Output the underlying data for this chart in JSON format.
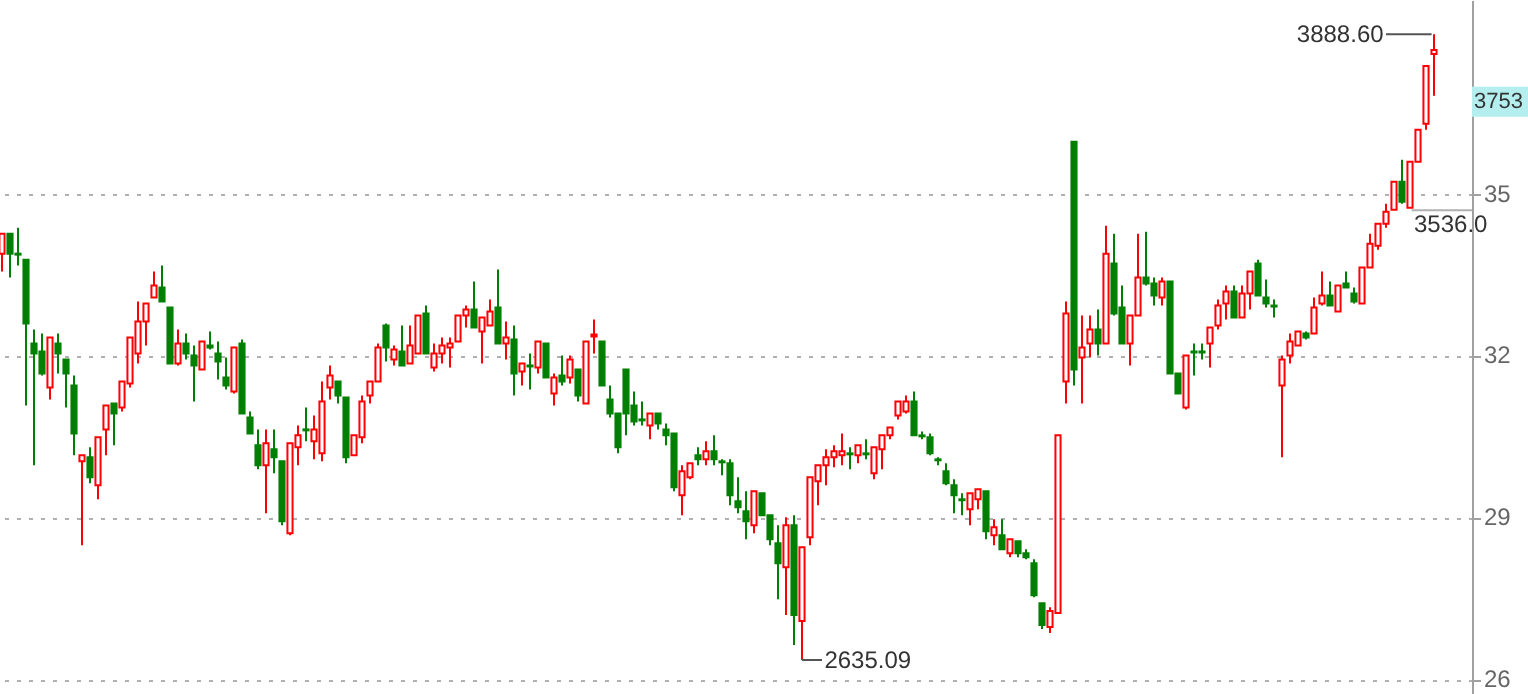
{
  "chart_data": {
    "type": "candlestick",
    "categories": [
      null,
      null,
      null,
      null,
      null,
      null,
      null,
      null,
      null,
      null,
      null,
      null,
      null,
      null,
      null,
      null,
      null,
      null,
      null,
      null,
      null,
      null,
      null,
      null,
      null,
      null,
      null,
      null,
      null,
      null,
      null,
      null,
      null,
      null,
      null,
      null,
      null,
      null,
      null,
      null,
      null,
      null,
      null,
      null,
      null,
      null,
      null,
      null,
      null,
      null,
      null,
      null,
      null,
      null,
      null,
      null,
      null,
      null,
      null,
      null,
      null,
      null,
      null,
      null,
      null,
      null,
      null,
      null,
      null,
      null,
      null,
      null,
      null,
      null,
      null,
      null,
      null,
      null,
      null,
      null,
      null,
      null,
      null,
      null,
      null,
      null,
      null,
      null,
      null,
      null,
      null,
      null,
      null,
      null,
      null,
      null,
      null,
      null,
      null,
      null,
      null,
      null,
      null,
      null,
      null,
      null,
      null,
      null,
      null,
      null,
      null,
      null,
      null,
      null,
      null,
      null,
      null,
      null,
      null,
      null,
      null,
      null,
      null,
      null,
      null,
      null,
      null,
      null,
      null,
      null,
      null,
      null,
      null,
      null,
      null,
      null,
      null,
      null,
      null,
      null,
      null,
      null,
      null,
      null,
      null,
      null,
      null,
      null,
      null,
      null,
      null,
      null,
      null,
      null,
      null,
      null,
      null,
      null,
      null,
      null,
      null,
      null,
      null,
      null,
      null,
      null,
      null,
      null,
      null,
      null,
      null,
      null,
      null,
      null,
      null,
      null,
      null,
      null,
      null,
      null
    ],
    "ohlc": [
      [
        3449,
        3489,
        3413,
        3489
      ],
      [
        3489,
        3489,
        3401,
        3449
      ],
      [
        3449,
        3501,
        3425,
        3447
      ],
      [
        3437,
        3437,
        3145,
        3309
      ],
      [
        3269,
        3297,
        3025,
        3249
      ],
      [
        3253,
        3289,
        3205,
        3209
      ],
      [
        3181,
        3281,
        3157,
        3281
      ],
      [
        3269,
        3289,
        3209,
        3249
      ],
      [
        3237,
        3237,
        3141,
        3209
      ],
      [
        3185,
        3205,
        3045,
        3089
      ],
      [
        3033,
        3045,
        2865,
        3045
      ],
      [
        3041,
        3061,
        2989,
        3001
      ],
      [
        2985,
        3081,
        2957,
        3081
      ],
      [
        3097,
        3145,
        3045,
        3145
      ],
      [
        3149,
        3149,
        3065,
        3129
      ],
      [
        3141,
        3193,
        3133,
        3193
      ],
      [
        3189,
        3281,
        3181,
        3281
      ],
      [
        3249,
        3353,
        3229,
        3313
      ],
      [
        3313,
        3349,
        3265,
        3349
      ],
      [
        3361,
        3413,
        3361,
        3385
      ],
      [
        3381,
        3425,
        3353,
        3353
      ],
      [
        3341,
        3341,
        3229,
        3229
      ],
      [
        3229,
        3297,
        3225,
        3269
      ],
      [
        3269,
        3289,
        3237,
        3249
      ],
      [
        3245,
        3265,
        3153,
        3225
      ],
      [
        3217,
        3273,
        3217,
        3273
      ],
      [
        3265,
        3293,
        3257,
        3261
      ],
      [
        3249,
        3273,
        3197,
        3233
      ],
      [
        3201,
        3241,
        3177,
        3185
      ],
      [
        3173,
        3261,
        3169,
        3261
      ],
      [
        3269,
        3277,
        3129,
        3129
      ],
      [
        3121,
        3133,
        3089,
        3089
      ],
      [
        3065,
        3097,
        3017,
        3025
      ],
      [
        3025,
        3097,
        2929,
        3069
      ],
      [
        3057,
        3097,
        3009,
        3041
      ],
      [
        3033,
        3033,
        2905,
        2913
      ],
      [
        2889,
        3069,
        2885,
        3069
      ],
      [
        3061,
        3105,
        3025,
        3085
      ],
      [
        3097,
        3141,
        3073,
        3095
      ],
      [
        3073,
        3125,
        3037,
        3097
      ],
      [
        3049,
        3193,
        3033,
        3153
      ],
      [
        3181,
        3225,
        3157,
        3205
      ],
      [
        3193,
        3193,
        3149,
        3165
      ],
      [
        3161,
        3161,
        3029,
        3041
      ],
      [
        3045,
        3085,
        3045,
        3085
      ],
      [
        3081,
        3165,
        3069,
        3153
      ],
      [
        3165,
        3193,
        3149,
        3193
      ],
      [
        3193,
        3269,
        3193,
        3261
      ],
      [
        3305,
        3309,
        3233,
        3261
      ],
      [
        3237,
        3265,
        3225,
        3257
      ],
      [
        3253,
        3305,
        3225,
        3225
      ],
      [
        3229,
        3305,
        3229,
        3265
      ],
      [
        3249,
        3325,
        3249,
        3325
      ],
      [
        3329,
        3345,
        3249,
        3249
      ],
      [
        3221,
        3269,
        3213,
        3249
      ],
      [
        3249,
        3281,
        3229,
        3265
      ],
      [
        3261,
        3281,
        3221,
        3269
      ],
      [
        3273,
        3325,
        3273,
        3325
      ],
      [
        3325,
        3345,
        3301,
        3337
      ],
      [
        3337,
        3393,
        3301,
        3301
      ],
      [
        3293,
        3321,
        3229,
        3321
      ],
      [
        3305,
        3357,
        3305,
        3333
      ],
      [
        3341,
        3417,
        3269,
        3269
      ],
      [
        3269,
        3313,
        3237,
        3281
      ],
      [
        3277,
        3305,
        3165,
        3209
      ],
      [
        3213,
        3229,
        3185,
        3229
      ],
      [
        3225,
        3249,
        3177,
        3223
      ],
      [
        3221,
        3273,
        3209,
        3273
      ],
      [
        3269,
        3269,
        3201,
        3201
      ],
      [
        3169,
        3209,
        3145,
        3201
      ],
      [
        3205,
        3245,
        3185,
        3193
      ],
      [
        3201,
        3245,
        3189,
        3237
      ],
      [
        3217,
        3217,
        3153,
        3165
      ],
      [
        3149,
        3273,
        3149,
        3273
      ],
      [
        3283,
        3317,
        3249,
        3287
      ],
      [
        3273,
        3273,
        3185,
        3185
      ],
      [
        3157,
        3185,
        3121,
        3129
      ],
      [
        3129,
        3129,
        3049,
        3061
      ],
      [
        3217,
        3217,
        3085,
        3129
      ],
      [
        3145,
        3173,
        3105,
        3113
      ],
      [
        3117,
        3153,
        3105,
        3115
      ],
      [
        3105,
        3129,
        3077,
        3129
      ],
      [
        3129,
        3129,
        3097,
        3109
      ],
      [
        3097,
        3109,
        3065,
        3085
      ],
      [
        3089,
        3089,
        2973,
        2981
      ],
      [
        2965,
        3025,
        2925,
        3013
      ],
      [
        3001,
        3029,
        2997,
        3029
      ],
      [
        3045,
        3061,
        3025,
        3037
      ],
      [
        3037,
        3073,
        3025,
        3053
      ],
      [
        3053,
        3085,
        3025,
        3037
      ],
      [
        3033,
        3037,
        3005,
        3031
      ],
      [
        3029,
        3037,
        2945,
        2965
      ],
      [
        2953,
        3001,
        2929,
        2941
      ],
      [
        2933,
        2973,
        2877,
        2913
      ],
      [
        2905,
        2973,
        2889,
        2973
      ],
      [
        2969,
        2969,
        2925,
        2925
      ],
      [
        2925,
        2925,
        2865,
        2877
      ],
      [
        2869,
        2905,
        2757,
        2829
      ],
      [
        2821,
        2921,
        2725,
        2905
      ],
      [
        2905,
        2925,
        2665,
        2725
      ],
      [
        2713,
        2861,
        2635.09,
        2861
      ],
      [
        2881,
        3001,
        2865,
        3001
      ],
      [
        2993,
        3025,
        2945,
        3025
      ],
      [
        3025,
        3057,
        2985,
        3041
      ],
      [
        3041,
        3065,
        3021,
        3053
      ],
      [
        3045,
        3089,
        3025,
        3053
      ],
      [
        3049,
        3061,
        3017,
        3047
      ],
      [
        3045,
        3065,
        3029,
        3065
      ],
      [
        3049,
        3077,
        3037,
        3047
      ],
      [
        3009,
        3061,
        2997,
        3061
      ],
      [
        3057,
        3085,
        3017,
        3085
      ],
      [
        3085,
        3101,
        3077,
        3101
      ],
      [
        3125,
        3153,
        3117,
        3153
      ],
      [
        3133,
        3165,
        3129,
        3153
      ],
      [
        3153,
        3173,
        3085,
        3085
      ],
      [
        3085,
        3093,
        3077,
        3083
      ],
      [
        3081,
        3089,
        3045,
        3049
      ],
      [
        3037,
        3041,
        3025,
        3035
      ],
      [
        3013,
        3029,
        2985,
        2989
      ],
      [
        2985,
        2997,
        2929,
        2965
      ],
      [
        2957,
        2969,
        2925,
        2955
      ],
      [
        2937,
        2969,
        2905,
        2969
      ],
      [
        2957,
        2977,
        2937,
        2977
      ],
      [
        2973,
        2973,
        2877,
        2893
      ],
      [
        2885,
        2917,
        2865,
        2901
      ],
      [
        2885,
        2917,
        2857,
        2857
      ],
      [
        2849,
        2877,
        2841,
        2877
      ],
      [
        2873,
        2873,
        2841,
        2849
      ],
      [
        2849,
        2857,
        2837,
        2841
      ],
      [
        2829,
        2837,
        2761,
        2765
      ],
      [
        2749,
        2749,
        2697,
        2705
      ],
      [
        2701,
        2741,
        2689,
        2733
      ],
      [
        2729,
        3085,
        2729,
        3085
      ],
      [
        3193,
        3353,
        3149,
        3329
      ],
      [
        3673,
        3673,
        3185,
        3217
      ],
      [
        3241,
        3325,
        3149,
        3261
      ],
      [
        3269,
        3325,
        3241,
        3297
      ],
      [
        3297,
        3337,
        3245,
        3269
      ],
      [
        3269,
        3505,
        3269,
        3449
      ],
      [
        3429,
        3489,
        3325,
        3329
      ],
      [
        3341,
        3385,
        3269,
        3269
      ],
      [
        3269,
        3325,
        3225,
        3325
      ],
      [
        3325,
        3489,
        3325,
        3401
      ],
      [
        3401,
        3493,
        3385,
        3389
      ],
      [
        3389,
        3401,
        3345,
        3365
      ],
      [
        3361,
        3401,
        3345,
        3393
      ],
      [
        3393,
        3393,
        3209,
        3209
      ],
      [
        3209,
        3209,
        3169,
        3169
      ],
      [
        3141,
        3245,
        3137,
        3245
      ],
      [
        3253,
        3269,
        3205,
        3251
      ],
      [
        3253,
        3269,
        3237,
        3251
      ],
      [
        3269,
        3301,
        3221,
        3301
      ],
      [
        3305,
        3357,
        3297,
        3345
      ],
      [
        3349,
        3385,
        3317,
        3373
      ],
      [
        3373,
        3385,
        3321,
        3321
      ],
      [
        3321,
        3385,
        3321,
        3369
      ],
      [
        3369,
        3413,
        3337,
        3413
      ],
      [
        3429,
        3437,
        3365,
        3365
      ],
      [
        3361,
        3397,
        3341,
        3349
      ],
      [
        3345,
        3357,
        3321,
        3343
      ],
      [
        3185,
        3245,
        3041,
        3237
      ],
      [
        3245,
        3289,
        3229,
        3273
      ],
      [
        3265,
        3293,
        3265,
        3293
      ],
      [
        3289,
        3293,
        3277,
        3281
      ],
      [
        3289,
        3361,
        3289,
        3341
      ],
      [
        3349,
        3413,
        3345,
        3365
      ],
      [
        3365,
        3393,
        3345,
        3345
      ],
      [
        3333,
        3385,
        3333,
        3385
      ],
      [
        3389,
        3413,
        3381,
        3381
      ],
      [
        3369,
        3381,
        3349,
        3353
      ],
      [
        3349,
        3421,
        3349,
        3421
      ],
      [
        3421,
        3489,
        3421,
        3469
      ],
      [
        3465,
        3509,
        3457,
        3509
      ],
      [
        3509,
        3549,
        3501,
        3533
      ],
      [
        3537,
        3593,
        3537,
        3593
      ],
      [
        3593,
        3637,
        3549,
        3553
      ],
      [
        3541,
        3633,
        3541,
        3633
      ],
      [
        3633,
        3697,
        3633,
        3697
      ],
      [
        3709,
        3825,
        3697,
        3825
      ],
      [
        3849,
        3888.6,
        3765,
        3857
      ]
    ],
    "colors": [
      "#ff0000",
      "#008000",
      "#008000",
      "#008000",
      "#008000",
      "#008000",
      "#ff0000",
      "#008000",
      "#008000",
      "#008000",
      "#ff0000",
      "#008000",
      "#ff0000",
      "#ff0000",
      "#008000",
      "#ff0000",
      "#ff0000",
      "#ff0000",
      "#ff0000",
      "#ff0000",
      "#008000",
      "#008000",
      "#ff0000",
      "#008000",
      "#008000",
      "#ff0000",
      "#008000",
      "#008000",
      "#008000",
      "#ff0000",
      "#008000",
      "#008000",
      "#008000",
      "#ff0000",
      "#008000",
      "#008000",
      "#ff0000",
      "#ff0000",
      "#008000",
      "#ff0000",
      "#ff0000",
      "#ff0000",
      "#008000",
      "#008000",
      "#ff0000",
      "#ff0000",
      "#ff0000",
      "#ff0000",
      "#008000",
      "#ff0000",
      "#008000",
      "#ff0000",
      "#ff0000",
      "#008000",
      "#ff0000",
      "#ff0000",
      "#ff0000",
      "#ff0000",
      "#ff0000",
      "#008000",
      "#ff0000",
      "#ff0000",
      "#008000",
      "#ff0000",
      "#008000",
      "#ff0000",
      "#008000",
      "#ff0000",
      "#008000",
      "#ff0000",
      "#008000",
      "#ff0000",
      "#008000",
      "#ff0000",
      "#ff0000",
      "#008000",
      "#008000",
      "#008000",
      "#008000",
      "#008000",
      "#008000",
      "#ff0000",
      "#008000",
      "#008000",
      "#008000",
      "#ff0000",
      "#ff0000",
      "#008000",
      "#ff0000",
      "#008000",
      "#008000",
      "#008000",
      "#008000",
      "#008000",
      "#ff0000",
      "#008000",
      "#008000",
      "#008000",
      "#ff0000",
      "#008000",
      "#ff0000",
      "#ff0000",
      "#ff0000",
      "#ff0000",
      "#ff0000",
      "#ff0000",
      "#008000",
      "#ff0000",
      "#008000",
      "#ff0000",
      "#ff0000",
      "#ff0000",
      "#ff0000",
      "#ff0000",
      "#008000",
      "#008000",
      "#008000",
      "#008000",
      "#008000",
      "#008000",
      "#008000",
      "#ff0000",
      "#ff0000",
      "#008000",
      "#ff0000",
      "#008000",
      "#ff0000",
      "#008000",
      "#008000",
      "#008000",
      "#008000",
      "#ff0000",
      "#ff0000",
      "#ff0000",
      "#008000",
      "#ff0000",
      "#ff0000",
      "#008000",
      "#ff0000",
      "#008000",
      "#008000",
      "#ff0000",
      "#ff0000",
      "#008000",
      "#008000",
      "#ff0000",
      "#008000",
      "#008000",
      "#ff0000",
      "#008000",
      "#008000",
      "#ff0000",
      "#ff0000",
      "#ff0000",
      "#008000",
      "#ff0000",
      "#ff0000",
      "#008000",
      "#008000",
      "#008000",
      "#ff0000",
      "#ff0000",
      "#ff0000",
      "#008000",
      "#ff0000",
      "#ff0000",
      "#008000",
      "#ff0000",
      "#008000",
      "#008000",
      "#ff0000",
      "#ff0000",
      "#ff0000",
      "#ff0000",
      "#ff0000",
      "#008000",
      "#ff0000",
      "#ff0000",
      "#ff0000",
      "#ff0000"
    ],
    "ylim": [
      2567,
      3957
    ],
    "yticks": [
      {
        "value": 3569,
        "label": null
      },
      {
        "value": 3245,
        "label": null
      },
      {
        "value": 2921,
        "label": null
      },
      {
        "value": 2597,
        "label": null
      }
    ],
    "grid": "y",
    "annotations": [
      "3888.60",
      "2635.09",
      "35",
      "32",
      "29",
      "26"
    ],
    "ref_lines": [
      {
        "axis": "y",
        "value": 3536,
        "label": "3536.0",
        "color": "#b0b0b0"
      },
      {
        "axis": "y",
        "value": 3753,
        "label": "3753",
        "color": "#b4eeee"
      }
    ]
  }
}
